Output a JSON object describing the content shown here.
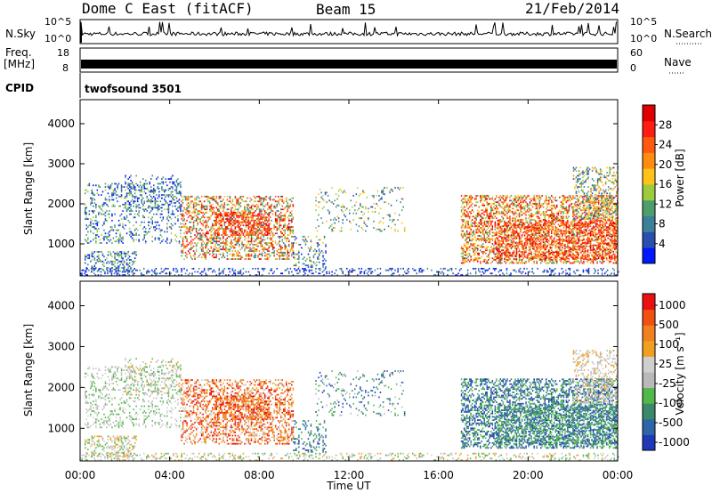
{
  "header": {
    "radar": "Dome C East (fitACF)",
    "beam": "Beam 15",
    "date": "21/Feb/2014"
  },
  "status_panels": {
    "nsky_label": "N.Sky",
    "nsky_max": "10^5",
    "nsky_min": "10^0",
    "nsearch_label": "N.Search",
    "nsearch_max": "10^5",
    "nsearch_min": "10^0",
    "freq_label": "Freq.",
    "freq_unit": "[MHz]",
    "freq_max": "18",
    "freq_min": "8",
    "nave_label": "Nave",
    "nave_max": "60",
    "nave_min": "0",
    "cpid_label": "CPID",
    "cpid_value": "twofsound 3501"
  },
  "chart_data": [
    {
      "type": "heatmap",
      "name": "power",
      "ylabel": "Slant Range [km]",
      "y_ticks": [
        "1000",
        "2000",
        "3000",
        "4000"
      ],
      "ylim": [
        200,
        4600
      ],
      "xlim": [
        0,
        24
      ],
      "colorbar": {
        "label": "Power [dB]",
        "ticks": [
          "4",
          "8",
          "12",
          "16",
          "20",
          "24",
          "28"
        ],
        "colors": [
          "#0018ff",
          "#2a4eb0",
          "#3b7f9a",
          "#4c9f6a",
          "#9ccc3c",
          "#ffc21a",
          "#ff8c10",
          "#ff5a10",
          "#ff1c10",
          "#e00000"
        ]
      }
    },
    {
      "type": "heatmap",
      "name": "velocity",
      "ylabel": "Slant Range [km]",
      "y_ticks": [
        "1000",
        "2000",
        "3000",
        "4000"
      ],
      "ylim": [
        200,
        4600
      ],
      "xlim": [
        0,
        24
      ],
      "x_ticks": [
        "00:00",
        "04:00",
        "08:00",
        "12:00",
        "16:00",
        "20:00",
        "00:00"
      ],
      "xlabel": "Time UT",
      "colorbar": {
        "label": "Velocity [m s⁻¹]",
        "ticks": [
          "1000",
          "500",
          "100",
          "25",
          "-25",
          "-100",
          "-500",
          "-1000"
        ],
        "colors": [
          "#2037b8",
          "#2c66a8",
          "#3a8a6a",
          "#52b84a",
          "#b9b9b9",
          "#cfcfcf",
          "#f0a020",
          "#f08020",
          "#f05010",
          "#e81010"
        ]
      }
    }
  ]
}
